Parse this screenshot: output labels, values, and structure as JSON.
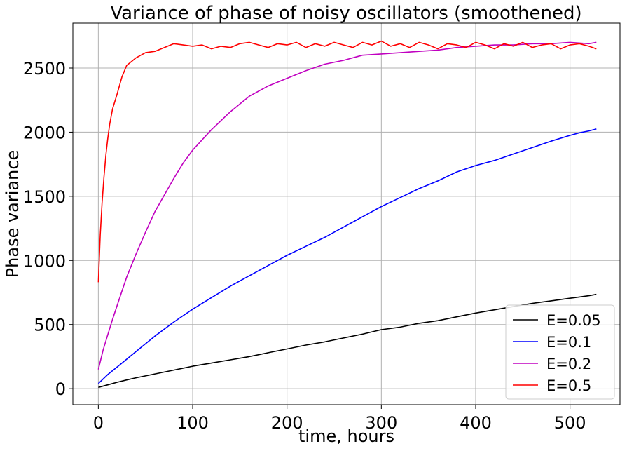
{
  "chart_data": {
    "type": "line",
    "title": "Variance of phase of noisy oscillators (smoothened)",
    "xlabel": "time, hours",
    "ylabel": "Phase variance",
    "xlim": [
      -27,
      553
    ],
    "ylim": [
      -125,
      2850
    ],
    "xticks": [
      0,
      100,
      200,
      300,
      400,
      500
    ],
    "yticks": [
      0,
      500,
      1000,
      1500,
      2000,
      2500
    ],
    "grid": true,
    "legend_position": "lower-right",
    "series": [
      {
        "name": "E=0.05",
        "color": "#000000",
        "x": [
          0,
          10,
          20,
          30,
          40,
          50,
          60,
          80,
          100,
          120,
          140,
          160,
          180,
          200,
          220,
          240,
          260,
          280,
          300,
          320,
          340,
          360,
          380,
          400,
          420,
          440,
          460,
          480,
          500,
          510,
          520,
          528
        ],
        "y": [
          10,
          30,
          50,
          68,
          85,
          100,
          115,
          145,
          175,
          200,
          225,
          250,
          280,
          310,
          340,
          365,
          395,
          425,
          460,
          480,
          510,
          530,
          560,
          590,
          615,
          640,
          665,
          685,
          705,
          715,
          725,
          735
        ]
      },
      {
        "name": "E=0.1",
        "color": "#0000ff",
        "x": [
          0,
          10,
          20,
          30,
          40,
          50,
          60,
          80,
          100,
          120,
          140,
          160,
          180,
          200,
          220,
          240,
          260,
          280,
          300,
          320,
          340,
          360,
          380,
          400,
          420,
          440,
          460,
          480,
          500,
          510,
          520,
          528
        ],
        "y": [
          40,
          110,
          170,
          230,
          290,
          350,
          410,
          520,
          620,
          710,
          800,
          880,
          960,
          1040,
          1110,
          1180,
          1260,
          1340,
          1420,
          1490,
          1560,
          1620,
          1690,
          1740,
          1780,
          1830,
          1880,
          1930,
          1975,
          1995,
          2010,
          2025
        ]
      },
      {
        "name": "E=0.2",
        "color": "#c000c0",
        "x": [
          0,
          5,
          10,
          15,
          20,
          25,
          30,
          40,
          50,
          60,
          70,
          80,
          90,
          100,
          120,
          140,
          160,
          180,
          200,
          220,
          240,
          260,
          280,
          300,
          320,
          340,
          360,
          380,
          400,
          420,
          440,
          460,
          480,
          500,
          520,
          528
        ],
        "y": [
          150,
          300,
          420,
          540,
          650,
          760,
          870,
          1050,
          1220,
          1380,
          1510,
          1640,
          1760,
          1860,
          2020,
          2160,
          2280,
          2360,
          2420,
          2480,
          2530,
          2560,
          2600,
          2610,
          2620,
          2630,
          2640,
          2660,
          2670,
          2680,
          2680,
          2690,
          2690,
          2700,
          2690,
          2700
        ]
      },
      {
        "name": "E=0.5",
        "color": "#ff0000",
        "x": [
          0,
          2,
          4,
          6,
          8,
          10,
          12,
          15,
          20,
          25,
          30,
          35,
          40,
          45,
          50,
          60,
          70,
          80,
          90,
          100,
          110,
          120,
          130,
          140,
          150,
          160,
          170,
          180,
          190,
          200,
          210,
          220,
          230,
          240,
          250,
          260,
          270,
          280,
          290,
          300,
          310,
          320,
          330,
          340,
          350,
          360,
          370,
          380,
          390,
          400,
          410,
          420,
          430,
          440,
          450,
          460,
          470,
          480,
          490,
          500,
          510,
          520,
          528
        ],
        "y": [
          830,
          1200,
          1450,
          1650,
          1820,
          1950,
          2060,
          2180,
          2300,
          2430,
          2520,
          2550,
          2580,
          2600,
          2620,
          2630,
          2660,
          2690,
          2680,
          2670,
          2680,
          2650,
          2670,
          2660,
          2690,
          2700,
          2680,
          2660,
          2690,
          2680,
          2700,
          2660,
          2690,
          2670,
          2700,
          2680,
          2660,
          2700,
          2680,
          2710,
          2670,
          2690,
          2660,
          2700,
          2680,
          2650,
          2690,
          2680,
          2660,
          2700,
          2680,
          2650,
          2690,
          2670,
          2700,
          2660,
          2680,
          2690,
          2650,
          2680,
          2690,
          2670,
          2650
        ]
      }
    ]
  }
}
